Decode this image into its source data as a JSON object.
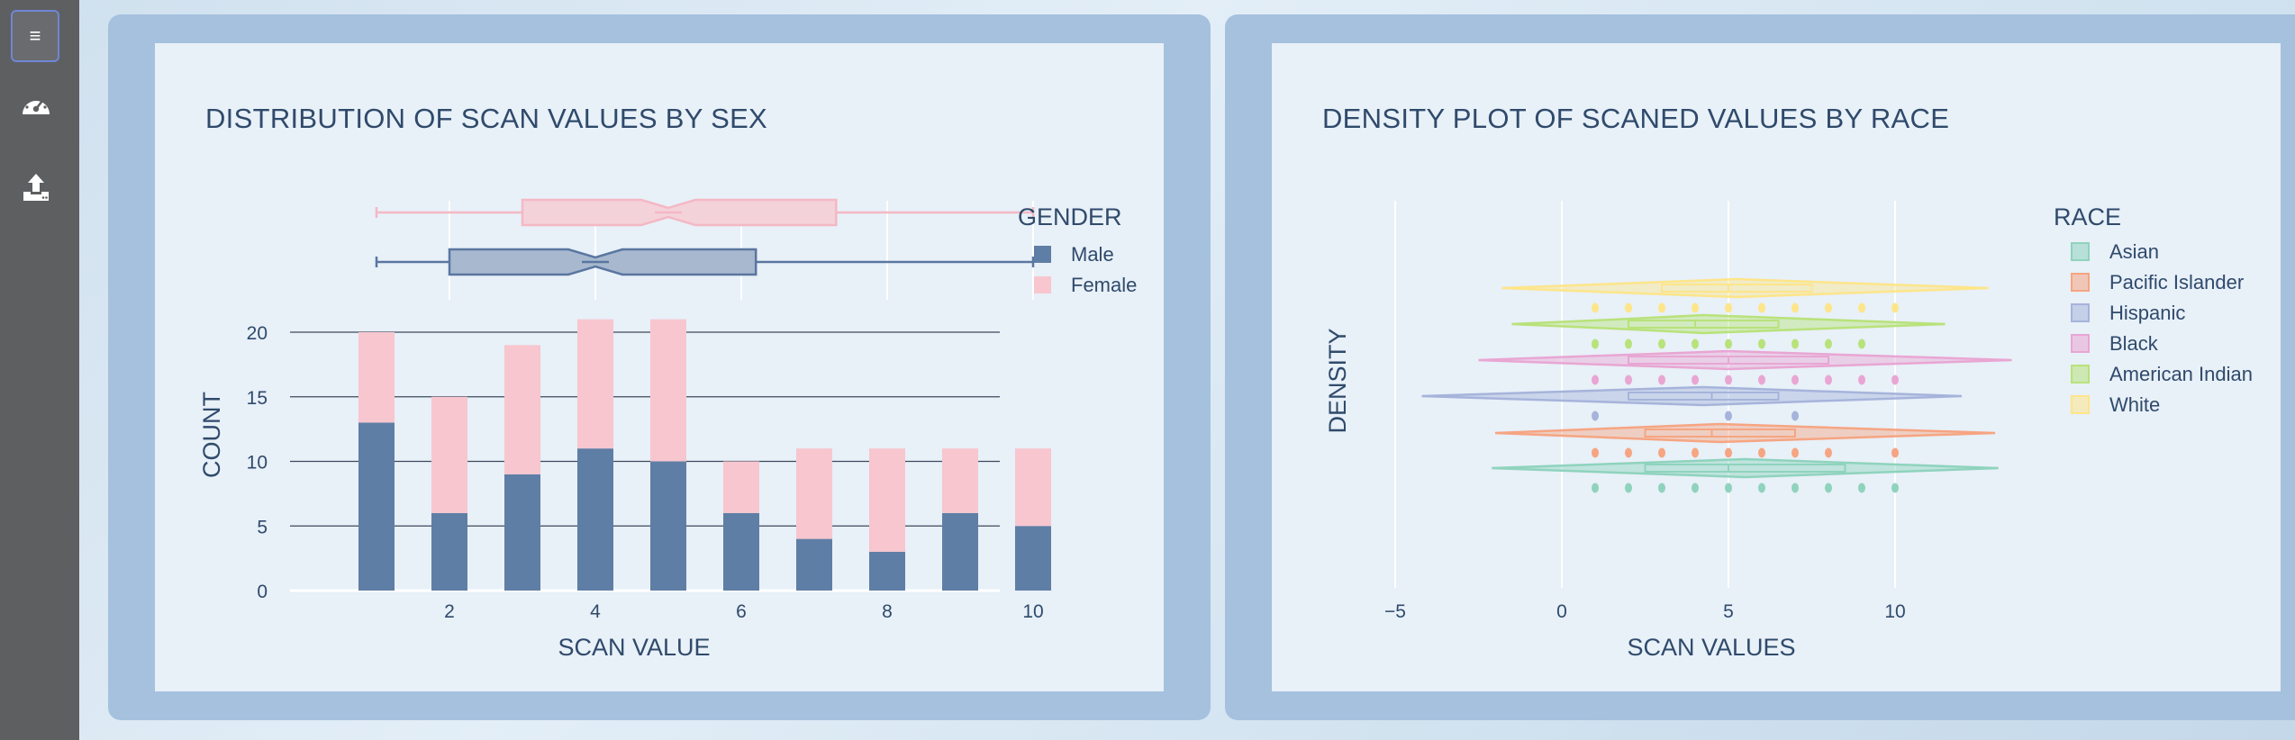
{
  "sidebar": {
    "menu_label": "≡",
    "items": [
      {
        "icon": "dashboard-icon"
      },
      {
        "icon": "upload-icon"
      }
    ]
  },
  "colors": {
    "male": "#5f7ea5",
    "female": "#f7c6cf",
    "asian": "#8fd3bd",
    "pacific_islander": "#f6a582",
    "hispanic": "#a6b4db",
    "black": "#e9a6d3",
    "american_indian": "#b8e27a",
    "white": "#fde58a"
  },
  "chart_data": [
    {
      "type": "bar",
      "title": "DISTRIBUTION OF SCAN VALUES BY SEX",
      "xlabel": "SCAN VALUE",
      "ylabel": "COUNT",
      "x": [
        1,
        2,
        3,
        4,
        5,
        6,
        7,
        8,
        9,
        10
      ],
      "x_ticks": [
        "2",
        "4",
        "6",
        "8",
        "10"
      ],
      "y_ticks": [
        "0",
        "5",
        "10",
        "15",
        "20"
      ],
      "ylim": [
        0,
        21
      ],
      "stacked": true,
      "legend_title": "GENDER",
      "legend_position": "top-right",
      "series": [
        {
          "name": "Male",
          "values": [
            13,
            6,
            9,
            11,
            10,
            6,
            4,
            3,
            6,
            5
          ]
        },
        {
          "name": "Female",
          "values": [
            7,
            9,
            10,
            10,
            11,
            4,
            7,
            8,
            5,
            6
          ]
        }
      ],
      "boxplots": [
        {
          "name": "Female",
          "min": 1,
          "q1": 3,
          "median": 5,
          "q3": 7.3,
          "max": 10
        },
        {
          "name": "Male",
          "min": 1,
          "q1": 2,
          "median": 4,
          "q3": 6.2,
          "max": 10
        }
      ]
    },
    {
      "type": "violin",
      "title": "DENSITY PLOT OF SCANED VALUES BY RACE",
      "xlabel": "SCAN VALUES",
      "ylabel": "DENSITY",
      "x_ticks": [
        "−5",
        "0",
        "5",
        "10"
      ],
      "xlim": [
        -5.5,
        14
      ],
      "legend_title": "RACE",
      "legend_position": "top-right",
      "series": [
        {
          "name": "Asian",
          "kde_range": [
            -2.1,
            13.1
          ],
          "q1": 2.5,
          "median": 5,
          "q3": 8.5,
          "points": [
            1,
            2,
            3,
            4,
            5,
            6,
            7,
            8,
            9,
            10
          ]
        },
        {
          "name": "Pacific Islander",
          "kde_range": [
            -2,
            13
          ],
          "q1": 2.5,
          "median": 4.5,
          "q3": 7,
          "points": [
            1,
            2,
            3,
            4,
            5,
            6,
            7,
            8,
            10
          ]
        },
        {
          "name": "Hispanic",
          "kde_range": [
            -4.2,
            12
          ],
          "q1": 2,
          "median": 4.5,
          "q3": 6.5,
          "points": [
            1,
            5,
            7
          ]
        },
        {
          "name": "Black",
          "kde_range": [
            -2.5,
            13.5
          ],
          "q1": 2,
          "median": 5,
          "q3": 8,
          "points": [
            1,
            2,
            3,
            4,
            5,
            6,
            7,
            8,
            9,
            10
          ]
        },
        {
          "name": "American Indian",
          "kde_range": [
            -1.5,
            11.5
          ],
          "q1": 2,
          "median": 4,
          "q3": 6.5,
          "points": [
            1,
            2,
            3,
            4,
            5,
            6,
            7,
            8,
            9
          ]
        },
        {
          "name": "White",
          "kde_range": [
            -1.8,
            12.8
          ],
          "q1": 3,
          "median": 5,
          "q3": 7.5,
          "points": [
            1,
            2,
            3,
            4,
            5,
            6,
            7,
            8,
            9,
            10
          ]
        }
      ]
    }
  ]
}
